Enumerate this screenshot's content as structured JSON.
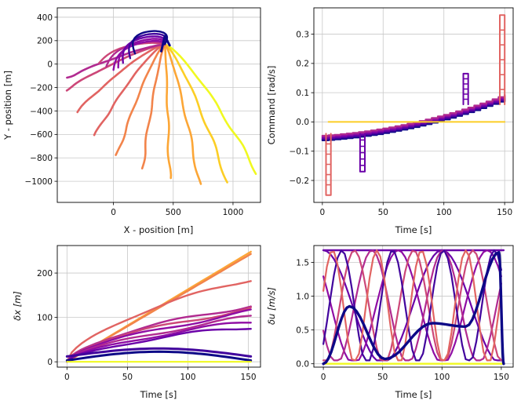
{
  "palette": {
    "colors": [
      "#0d0887",
      "#41049d",
      "#6a00a8",
      "#8f0da4",
      "#b12a90",
      "#cc4778",
      "#e16462",
      "#f2844b",
      "#fca636",
      "#fcce25",
      "#f0f921"
    ],
    "yellow": "#f0f921",
    "orange": "#f2844b",
    "navy": "#0d0887"
  },
  "chart_data": [
    {
      "id": "trajectories",
      "type": "line",
      "xlabel": "X - position [m]",
      "ylabel": "Y - position [m]",
      "xlim": [
        -470,
        1230
      ],
      "ylim": [
        -1180,
        480
      ],
      "xticks": [
        0,
        500,
        1000
      ],
      "yticks": [
        -1000,
        -800,
        -600,
        -400,
        -200,
        0,
        200,
        400
      ],
      "grid": true,
      "origin": [
        430,
        170
      ],
      "fan_endpoints": [
        [
          1200,
          -930,
          10
        ],
        [
          950,
          -1000,
          9
        ],
        [
          720,
          -1020,
          8
        ],
        [
          470,
          -980,
          8
        ],
        [
          240,
          -900,
          7
        ],
        [
          30,
          -780,
          7
        ],
        [
          -150,
          -600,
          6
        ],
        [
          -300,
          -400,
          6
        ],
        [
          -400,
          -220,
          5
        ],
        [
          -400,
          -120,
          4
        ]
      ],
      "loop_members": [
        {
          "end": [
            -120,
            40
          ],
          "color": 5,
          "amp": 0.55
        },
        {
          "end": [
            -60,
            10
          ],
          "color": 4,
          "amp": 0.75
        },
        {
          "end": [
            0,
            -20
          ],
          "color": 3,
          "amp": 0.9
        },
        {
          "end": [
            40,
            0
          ],
          "color": 3,
          "amp": 1.0
        },
        {
          "end": [
            80,
            40
          ],
          "color": 2,
          "amp": 1.05
        },
        {
          "end": [
            140,
            80
          ],
          "color": 1,
          "amp": 1.1
        },
        {
          "end": [
            180,
            120
          ],
          "color": 0,
          "amp": 1.15
        }
      ]
    },
    {
      "id": "commands",
      "type": "line",
      "xlabel": "Time [s]",
      "ylabel": "Command [rad/s]",
      "xlim": [
        -7,
        157
      ],
      "ylim": [
        -0.275,
        0.39
      ],
      "xticks": [
        0,
        50,
        100,
        150
      ],
      "yticks": [
        -0.2,
        -0.1,
        0.0,
        0.1,
        0.2,
        0.3
      ],
      "ytick_labels": [
        "−0.2",
        "−0.1",
        "0.0",
        "0.1",
        "0.2",
        "0.3"
      ],
      "grid": true,
      "flat_line": {
        "value": 0.0,
        "x": [
          5,
          150
        ],
        "color": 9
      },
      "ramp": {
        "start": -0.055,
        "mid": 0.0,
        "end": 0.085,
        "cross_t": 70
      },
      "spikes": [
        {
          "t": 5,
          "min": -0.25,
          "color": 6
        },
        {
          "t": 33,
          "min": -0.17,
          "color": 2
        },
        {
          "t": 118,
          "max": 0.165,
          "color": 2
        },
        {
          "t": 148,
          "max": 0.365,
          "color": 6
        }
      ]
    },
    {
      "id": "delta_x",
      "type": "line",
      "xlabel": "Time [s]",
      "ylabel": "δx [m]",
      "xlim": [
        -8,
        160
      ],
      "ylim": [
        -12,
        262
      ],
      "xticks": [
        0,
        50,
        100,
        150
      ],
      "yticks": [
        0,
        100,
        200
      ],
      "grid": true,
      "final_values": [
        {
          "final": 248,
          "color": 8
        },
        {
          "final": 243,
          "color": 7
        },
        {
          "final": 188,
          "color": 6
        },
        {
          "final": 128,
          "color": 4
        },
        {
          "final": 120,
          "color": 5
        },
        {
          "final": 112,
          "color": 3
        },
        {
          "final": 100,
          "color": 4
        },
        {
          "final": 90,
          "color": 3
        },
        {
          "final": 80,
          "color": 2
        },
        {
          "final": 12,
          "color": 1
        },
        {
          "final": 3,
          "color": 0
        }
      ]
    },
    {
      "id": "delta_u",
      "type": "line",
      "xlabel": "Time [s]",
      "ylabel": "δu [m/s]",
      "xlim": [
        -8,
        160
      ],
      "ylim": [
        -0.05,
        1.75
      ],
      "xticks": [
        0,
        50,
        100,
        150
      ],
      "yticks": [
        0.0,
        0.5,
        1.0,
        1.5
      ],
      "ytick_labels": [
        "0.0",
        "0.5",
        "1.0",
        "1.5"
      ],
      "grid": true,
      "saturation": 1.68,
      "baseline_color": 10,
      "peaks": [
        {
          "t": 22,
          "v": 0.85,
          "color": 0
        },
        {
          "t": 52,
          "v": 0.07,
          "color": 0
        },
        {
          "t": 92,
          "v": 0.6,
          "color": 1
        },
        {
          "t": 148,
          "v": 1.65,
          "color": 0
        }
      ]
    }
  ]
}
